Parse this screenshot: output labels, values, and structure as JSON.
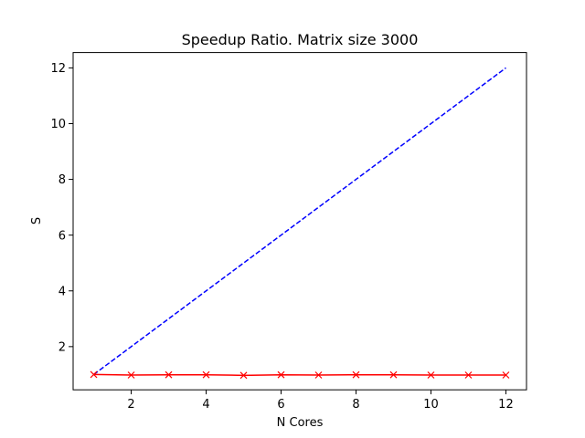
{
  "chart_data": {
    "type": "line",
    "title": "Speedup Ratio.  Matrix size 3000",
    "xlabel": "N Cores",
    "ylabel": "S",
    "xlim": [
      0.45,
      12.55
    ],
    "ylim": [
      0.45,
      12.55
    ],
    "xticks": [
      2,
      4,
      6,
      8,
      10,
      12
    ],
    "yticks": [
      2,
      4,
      6,
      8,
      10,
      12
    ],
    "grid": false,
    "legend": "none",
    "x": [
      1,
      2,
      3,
      4,
      5,
      6,
      7,
      8,
      9,
      10,
      11,
      12
    ],
    "series": [
      {
        "style": "dashed",
        "marker": "none",
        "color": "#0000ff",
        "values": [
          1,
          2,
          3,
          4,
          5,
          6,
          7,
          8,
          9,
          10,
          11,
          12
        ]
      },
      {
        "style": "solid",
        "marker": "x",
        "color": "#ff0000",
        "values": [
          1.0,
          0.98,
          0.99,
          0.99,
          0.97,
          0.99,
          0.98,
          0.99,
          0.99,
          0.98,
          0.98,
          0.98
        ]
      }
    ]
  }
}
